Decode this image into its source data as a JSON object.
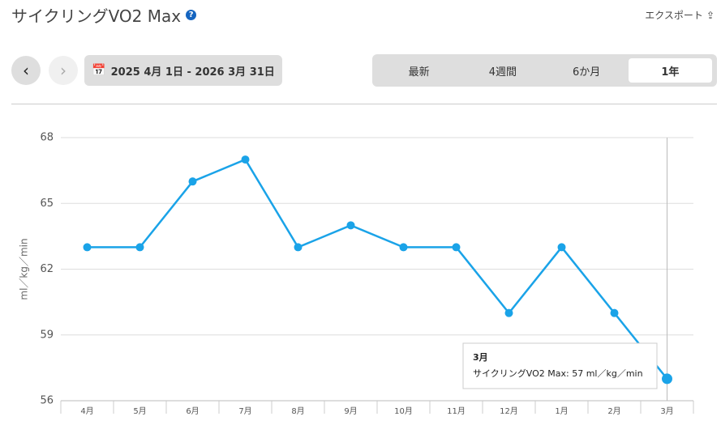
{
  "header": {
    "title": "サイクリングVO2 Max",
    "export": "エクスポート"
  },
  "controls": {
    "date_range": "2025 4月 1日 - 2026 3月 31日",
    "tabs": [
      "最新",
      "4週間",
      "6か月",
      "1年"
    ],
    "active_tab": 3
  },
  "chart_data": {
    "type": "line",
    "y_label": "ml／kg／min",
    "categories": [
      "4月",
      "5月",
      "6月",
      "7月",
      "8月",
      "9月",
      "10月",
      "11月",
      "12月",
      "1月",
      "2月",
      "3月"
    ],
    "values": [
      63,
      63,
      66,
      67,
      63,
      64,
      63,
      63,
      60,
      63,
      60,
      57
    ],
    "color": "#1aa3e8",
    "ylim": [
      56,
      68
    ],
    "yticks": [
      56,
      59,
      62,
      65,
      68
    ],
    "grid": true,
    "tooltip": {
      "title": "3月",
      "text": "サイクリングVO2 Max: 57 ml／kg／min"
    }
  }
}
